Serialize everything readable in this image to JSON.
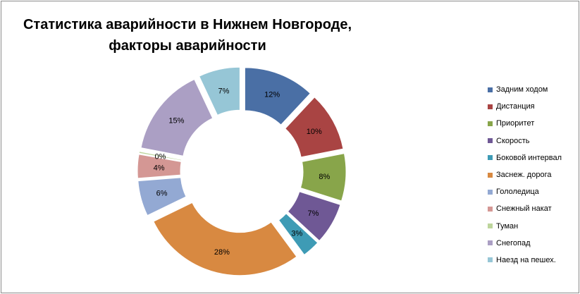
{
  "chart_data": {
    "type": "pie",
    "subtype": "exploded-doughnut",
    "title_lines": [
      "Статистика аварийности в Нижнем Новгороде,",
      "факторы аварийности"
    ],
    "categories": [
      "Задним ходом",
      "Дистанция",
      "Приоритет",
      "Скорость",
      "Боковой интервал",
      "Заснеж. дорога",
      "Гололедица",
      "Снежный накат",
      "Туман",
      "Снегопад",
      "Наезд на пешех."
    ],
    "values": [
      12,
      10,
      8,
      7,
      3,
      28,
      6,
      4,
      0.3,
      15,
      7
    ],
    "data_labels": [
      "12%",
      "10%",
      "8%",
      "7%",
      "3%",
      "28%",
      "6%",
      "4%",
      "0%",
      "15%",
      "7%"
    ],
    "colors": [
      "#4a6fa5",
      "#a94443",
      "#88a54a",
      "#6f5895",
      "#3e9bb5",
      "#d88941",
      "#93a9d3",
      "#d49794",
      "#bdd59c",
      "#ab9fc4",
      "#96c6d6"
    ],
    "legend_position": "right"
  }
}
